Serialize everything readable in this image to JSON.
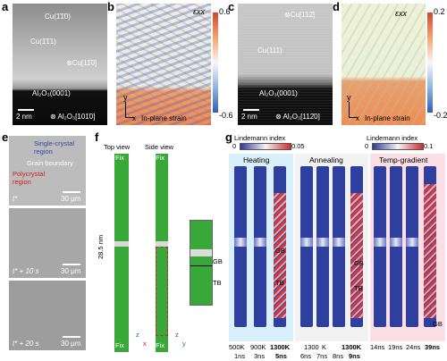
{
  "panels": {
    "a": {
      "letter": "a",
      "labels": [
        "Cu(1̄1̄0)",
        "Cu(1̄1̄1)",
        "⊗Cu[11̄0]",
        "Al₂O₃(0001)"
      ],
      "scale": "2 nm",
      "zone": "⊗ Al₂O₃[101̄0]"
    },
    "b": {
      "letter": "b",
      "strain": "εxx",
      "max": "0.6",
      "min": "-0.6",
      "x": "x",
      "y": "y",
      "caption": "In-plane strain"
    },
    "c": {
      "letter": "c",
      "labels": [
        "⊗Cu[112̄]",
        "Cu(111)",
        "Al₂O₃(0001)"
      ],
      "scale": "2 nm",
      "zone": "⊗ Al₂O₃[112̄0]"
    },
    "d": {
      "letter": "d",
      "strain": "εxx",
      "max": "0.2",
      "min": "-0.2",
      "x": "x",
      "y": "y",
      "caption": "In-plane strain"
    },
    "e": {
      "letter": "e",
      "region1": "Single-crystal region",
      "region2": "Grain boundary",
      "region3": "Polycrystal region",
      "times": [
        "t*",
        "t* + 10 s",
        "t* + 20 s"
      ],
      "scale": "30 μm"
    },
    "f": {
      "letter": "f",
      "top_view": "Top view",
      "side_view": "Side view",
      "fix": "Fix",
      "length": "28.5 nm",
      "gb": "GB",
      "tb": "TB",
      "axes": [
        "z",
        "x",
        "z",
        "y"
      ]
    },
    "g": {
      "letter": "g",
      "lindemann1": "Lindemann index",
      "lindemann2": "Lindemann index",
      "cb1": [
        "0",
        "0.05"
      ],
      "cb2": [
        "0",
        "0.1"
      ],
      "groups": [
        "Heating",
        "Annealing",
        "Temp-gradient"
      ],
      "temps": [
        "500K",
        "900K",
        "1300K",
        "1300",
        "K",
        "1300K",
        "14ns",
        "19ns",
        "24ns",
        "39ns"
      ],
      "times": [
        "1ns",
        "3ns",
        "5ns",
        "6ns",
        "7ns",
        "8ns",
        "9ns"
      ],
      "gb": "GB",
      "tb": "TB"
    }
  }
}
